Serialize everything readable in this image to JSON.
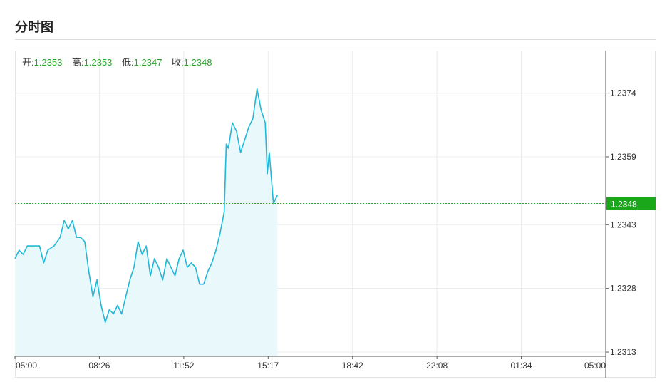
{
  "page": {
    "title": "分时图"
  },
  "ohlc": {
    "open_label": "开:",
    "open": "1.2353",
    "high_label": "高:",
    "high": "1.2353",
    "low_label": "低:",
    "low": "1.2347",
    "close_label": "收:",
    "close": "1.2348"
  },
  "last_price": "1.2348",
  "colors": {
    "line": "#20b8d6",
    "area": "#e8f8fb",
    "up": "#2aa52a",
    "tag": "#1aa81a",
    "grid": "#e9ecef",
    "axis": "#555555"
  },
  "chart_data": {
    "type": "area",
    "title": "",
    "xlabel": "",
    "ylabel": "",
    "x_ticks": [
      "05:00",
      "08:26",
      "11:52",
      "15:17",
      "18:42",
      "22:08",
      "01:34",
      "05:00"
    ],
    "y_ticks": [
      "1.2374",
      "1.2359",
      "1.2343",
      "1.2328",
      "1.2313"
    ],
    "ylim": [
      1.2312,
      1.2384
    ],
    "xlim": [
      0,
      1440
    ],
    "reference_line": 1.2348,
    "grid": true,
    "series": [
      {
        "points": [
          [
            0,
            1.2335
          ],
          [
            10,
            1.2337
          ],
          [
            20,
            1.2336
          ],
          [
            30,
            1.2338
          ],
          [
            45,
            1.2338
          ],
          [
            60,
            1.2338
          ],
          [
            70,
            1.2334
          ],
          [
            80,
            1.2337
          ],
          [
            95,
            1.2338
          ],
          [
            110,
            1.234
          ],
          [
            120,
            1.2344
          ],
          [
            130,
            1.2342
          ],
          [
            140,
            1.2344
          ],
          [
            150,
            1.234
          ],
          [
            160,
            1.234
          ],
          [
            170,
            1.2339
          ],
          [
            180,
            1.2332
          ],
          [
            190,
            1.2326
          ],
          [
            200,
            1.233
          ],
          [
            210,
            1.2324
          ],
          [
            220,
            1.232
          ],
          [
            230,
            1.2323
          ],
          [
            240,
            1.2322
          ],
          [
            250,
            1.2324
          ],
          [
            260,
            1.2322
          ],
          [
            270,
            1.2326
          ],
          [
            280,
            1.233
          ],
          [
            290,
            1.2333
          ],
          [
            300,
            1.2339
          ],
          [
            310,
            1.2336
          ],
          [
            320,
            1.2338
          ],
          [
            330,
            1.2331
          ],
          [
            340,
            1.2335
          ],
          [
            350,
            1.2333
          ],
          [
            360,
            1.233
          ],
          [
            370,
            1.2335
          ],
          [
            380,
            1.2333
          ],
          [
            390,
            1.2331
          ],
          [
            400,
            1.2335
          ],
          [
            410,
            1.2337
          ],
          [
            420,
            1.2333
          ],
          [
            430,
            1.2334
          ],
          [
            440,
            1.2333
          ],
          [
            450,
            1.2329
          ],
          [
            460,
            1.2329
          ],
          [
            470,
            1.2332
          ],
          [
            480,
            1.2334
          ],
          [
            490,
            1.2337
          ],
          [
            500,
            1.2341
          ],
          [
            510,
            1.2346
          ],
          [
            515,
            1.2362
          ],
          [
            520,
            1.2361
          ],
          [
            530,
            1.2367
          ],
          [
            540,
            1.2365
          ],
          [
            550,
            1.236
          ],
          [
            560,
            1.2363
          ],
          [
            570,
            1.2366
          ],
          [
            580,
            1.2368
          ],
          [
            590,
            1.2375
          ],
          [
            600,
            1.237
          ],
          [
            610,
            1.2367
          ],
          [
            615,
            1.2355
          ],
          [
            620,
            1.236
          ],
          [
            630,
            1.2348
          ],
          [
            640,
            1.235
          ]
        ]
      }
    ]
  }
}
